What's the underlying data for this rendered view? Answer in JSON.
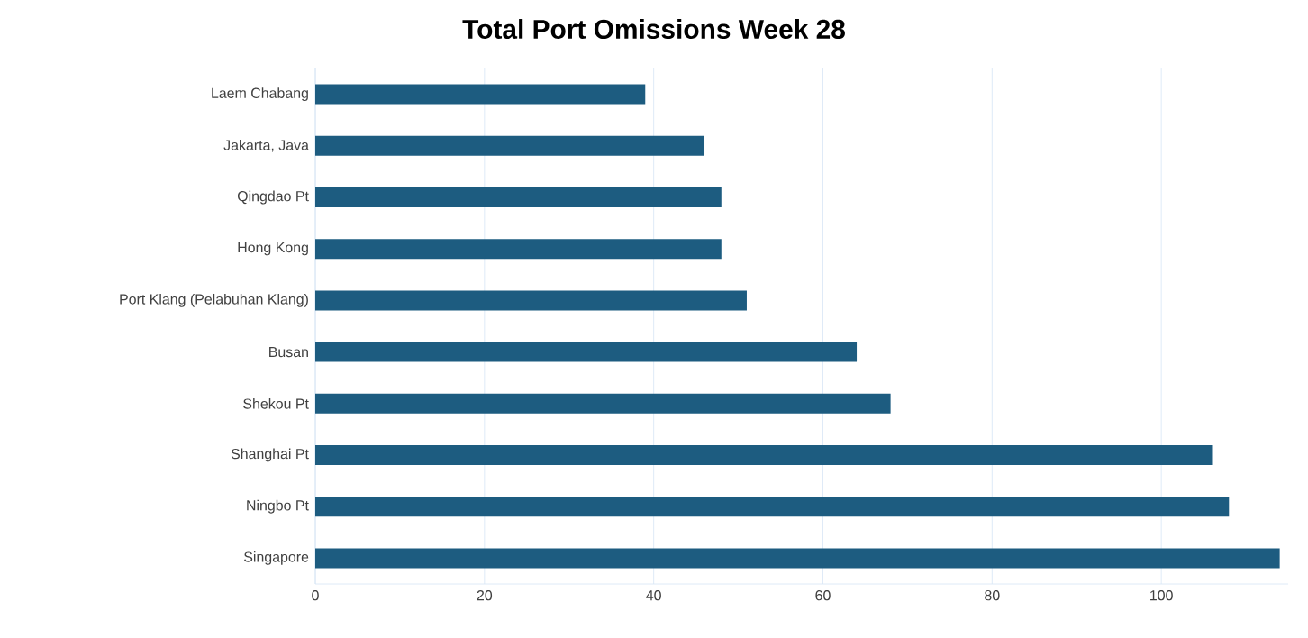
{
  "chart_data": {
    "type": "bar",
    "orientation": "horizontal",
    "title": "Total Port Omissions Week  28",
    "categories": [
      "Laem Chabang",
      "Jakarta, Java",
      "Qingdao Pt",
      "Hong Kong",
      "Port Klang (Pelabuhan Klang)",
      "Busan",
      "Shekou Pt",
      "Shanghai Pt",
      "Ningbo Pt",
      "Singapore"
    ],
    "values": [
      39,
      46,
      48,
      48,
      51,
      64,
      68,
      106,
      108,
      114
    ],
    "color": "#1d5c80",
    "xlim": [
      0,
      115
    ],
    "xticks": [
      0,
      20,
      40,
      60,
      80,
      100
    ],
    "grid": "x"
  }
}
